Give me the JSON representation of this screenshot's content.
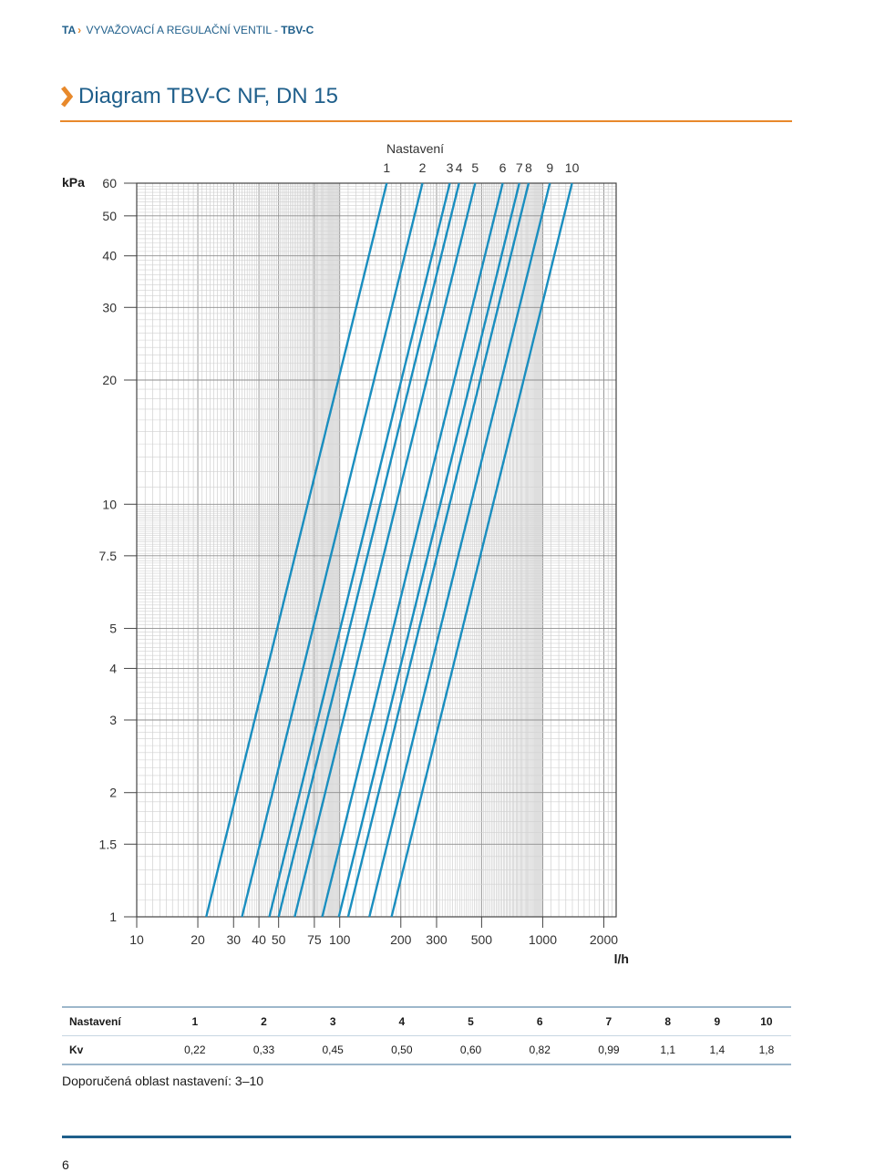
{
  "header": {
    "brand": "TA",
    "product_name": "VYVAŽOVACÍ A REGULAČNÍ VENTIL - ",
    "model": "TBV-C"
  },
  "page_title": "Diagram TBV-C NF, DN 15",
  "colors": {
    "line": "#1a8ebf",
    "accent": "#e8892b",
    "brand": "#1f5f8b",
    "grid": "#b8b8b8"
  },
  "chart_data": {
    "type": "line",
    "title": "Nastavení",
    "x_scale": "log",
    "y_scale": "log",
    "xlabel": "l/h",
    "ylabel": "kPa",
    "xlim": [
      10,
      2300
    ],
    "ylim": [
      1,
      60
    ],
    "x_tick_labels": [
      "10",
      "20",
      "30",
      "40",
      "50",
      "75",
      "100",
      "200",
      "300",
      "500",
      "1000",
      "2000"
    ],
    "y_tick_labels": [
      "60",
      "50",
      "40",
      "30",
      "20",
      "10",
      "7.5",
      "5",
      "4",
      "3",
      "2",
      "1.5",
      "1"
    ],
    "x_ticks": [
      10,
      20,
      30,
      40,
      50,
      75,
      100,
      200,
      300,
      500,
      1000,
      2000
    ],
    "y_ticks": [
      60,
      50,
      40,
      30,
      20,
      10,
      7.5,
      5,
      4,
      3,
      2,
      1.5,
      1
    ],
    "grid": true,
    "series": [
      {
        "name": "1",
        "kv": 0.22,
        "points": [
          [
            22,
            1
          ],
          [
            170.4,
            60
          ]
        ]
      },
      {
        "name": "2",
        "kv": 0.33,
        "points": [
          [
            33,
            1
          ],
          [
            255.6,
            60
          ]
        ]
      },
      {
        "name": "3",
        "kv": 0.45,
        "points": [
          [
            45,
            1
          ],
          [
            348.6,
            60
          ]
        ]
      },
      {
        "name": "4",
        "kv": 0.5,
        "points": [
          [
            50,
            1
          ],
          [
            387.3,
            60
          ]
        ]
      },
      {
        "name": "5",
        "kv": 0.6,
        "points": [
          [
            60,
            1
          ],
          [
            464.8,
            60
          ]
        ]
      },
      {
        "name": "6",
        "kv": 0.82,
        "points": [
          [
            82,
            1
          ],
          [
            635.2,
            60
          ]
        ]
      },
      {
        "name": "7",
        "kv": 0.99,
        "points": [
          [
            99,
            1
          ],
          [
            766.9,
            60
          ]
        ]
      },
      {
        "name": "8",
        "kv": 1.1,
        "points": [
          [
            110,
            1
          ],
          [
            852.1,
            60
          ]
        ]
      },
      {
        "name": "9",
        "kv": 1.4,
        "points": [
          [
            140,
            1
          ],
          [
            1084.4,
            60
          ]
        ]
      },
      {
        "name": "10",
        "kv": 1.8,
        "points": [
          [
            180,
            1
          ],
          [
            1394.3,
            60
          ]
        ]
      }
    ]
  },
  "table": {
    "row1_label": "Nastavení",
    "settings": [
      "1",
      "2",
      "3",
      "4",
      "5",
      "6",
      "7",
      "8",
      "9",
      "10"
    ],
    "row2_label": "Kv",
    "kv": [
      "0,22",
      "0,33",
      "0,45",
      "0,50",
      "0,60",
      "0,82",
      "0,99",
      "1,1",
      "1,4",
      "1,8"
    ]
  },
  "note": "Doporučená oblast nastavení: 3–10",
  "page_number": "6"
}
